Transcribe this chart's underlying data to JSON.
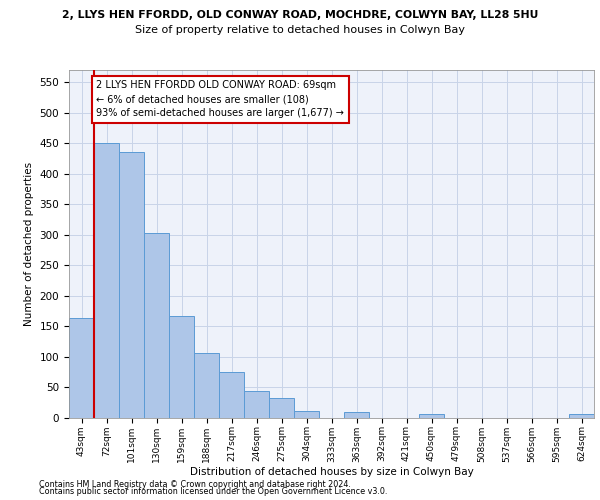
{
  "title_line1": "2, LLYS HEN FFORDD, OLD CONWAY ROAD, MOCHDRE, COLWYN BAY, LL28 5HU",
  "title_line2": "Size of property relative to detached houses in Colwyn Bay",
  "xlabel": "Distribution of detached houses by size in Colwyn Bay",
  "ylabel": "Number of detached properties",
  "footer1": "Contains HM Land Registry data © Crown copyright and database right 2024.",
  "footer2": "Contains public sector information licensed under the Open Government Licence v3.0.",
  "bar_labels": [
    "43sqm",
    "72sqm",
    "101sqm",
    "130sqm",
    "159sqm",
    "188sqm",
    "217sqm",
    "246sqm",
    "275sqm",
    "304sqm",
    "333sqm",
    "363sqm",
    "392sqm",
    "421sqm",
    "450sqm",
    "479sqm",
    "508sqm",
    "537sqm",
    "566sqm",
    "595sqm",
    "624sqm"
  ],
  "bar_values": [
    163,
    450,
    435,
    303,
    167,
    106,
    74,
    44,
    32,
    11,
    0,
    9,
    0,
    0,
    5,
    0,
    0,
    0,
    0,
    0,
    5
  ],
  "bar_color": "#aec6e8",
  "bar_edge_color": "#5b9bd5",
  "grid_color": "#c8d4e8",
  "background_color": "#eef2fa",
  "red_line_x": 0.5,
  "red_line_color": "#cc0000",
  "annotation_text": "2 LLYS HEN FFORDD OLD CONWAY ROAD: 69sqm\n← 6% of detached houses are smaller (108)\n93% of semi-detached houses are larger (1,677) →",
  "annotation_box_color": "#ffffff",
  "annotation_box_edge": "#cc0000",
  "ylim": [
    0,
    570
  ],
  "yticks": [
    0,
    50,
    100,
    150,
    200,
    250,
    300,
    350,
    400,
    450,
    500,
    550
  ]
}
